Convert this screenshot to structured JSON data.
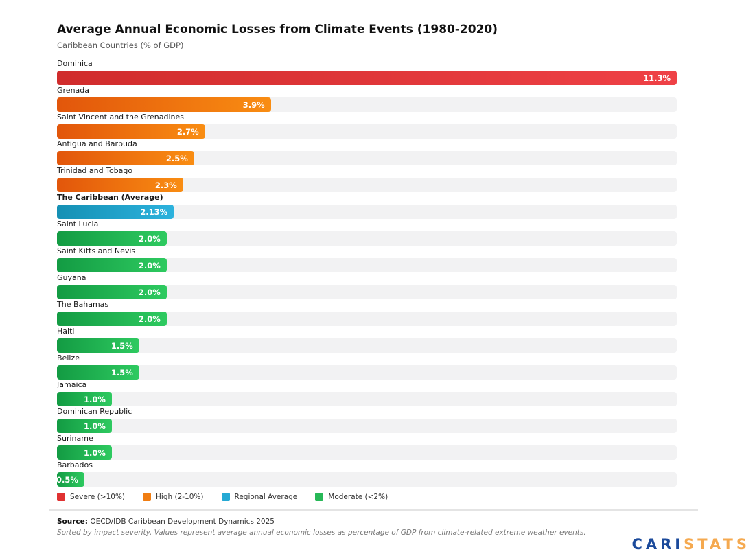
{
  "header": {
    "title": "Average Annual Economic Losses from Climate Events (1980-2020)",
    "subtitle": "Caribbean Countries (% of GDP)"
  },
  "chart_data": {
    "type": "bar",
    "orientation": "horizontal",
    "title": "Average Annual Economic Losses from Climate Events (1980-2020)",
    "subtitle": "Caribbean Countries (% of GDP)",
    "xlabel": "",
    "ylabel": "",
    "xlim": [
      0,
      11.3
    ],
    "grid": false,
    "legend_position": "bottom",
    "categories": [
      "Dominica",
      "Grenada",
      "Saint Vincent and the Grenadines",
      "Antigua and Barbuda",
      "Trinidad and Tobago",
      "The Caribbean (Average)",
      "Saint Lucia",
      "Saint Kitts and Nevis",
      "Guyana",
      "The Bahamas",
      "Haiti",
      "Belize",
      "Jamaica",
      "Dominican Republic",
      "Suriname",
      "Barbados"
    ],
    "values": [
      11.3,
      3.9,
      2.7,
      2.5,
      2.3,
      2.13,
      2.0,
      2.0,
      2.0,
      2.0,
      1.5,
      1.5,
      1.0,
      1.0,
      1.0,
      0.5
    ],
    "bars": [
      {
        "label": "Dominica",
        "value": 11.3,
        "display": "11.3%",
        "severity": "severe",
        "emphasis": false
      },
      {
        "label": "Grenada",
        "value": 3.9,
        "display": "3.9%",
        "severity": "high",
        "emphasis": false
      },
      {
        "label": "Saint Vincent and the Grenadines",
        "value": 2.7,
        "display": "2.7%",
        "severity": "high",
        "emphasis": false
      },
      {
        "label": "Antigua and Barbuda",
        "value": 2.5,
        "display": "2.5%",
        "severity": "high",
        "emphasis": false
      },
      {
        "label": "Trinidad and Tobago",
        "value": 2.3,
        "display": "2.3%",
        "severity": "high",
        "emphasis": false
      },
      {
        "label": "The Caribbean (Average)",
        "value": 2.13,
        "display": "2.13%",
        "severity": "regional",
        "emphasis": true
      },
      {
        "label": "Saint Lucia",
        "value": 2.0,
        "display": "2.0%",
        "severity": "moderate",
        "emphasis": false
      },
      {
        "label": "Saint Kitts and Nevis",
        "value": 2.0,
        "display": "2.0%",
        "severity": "moderate",
        "emphasis": false
      },
      {
        "label": "Guyana",
        "value": 2.0,
        "display": "2.0%",
        "severity": "moderate",
        "emphasis": false
      },
      {
        "label": "The Bahamas",
        "value": 2.0,
        "display": "2.0%",
        "severity": "moderate",
        "emphasis": false
      },
      {
        "label": "Haiti",
        "value": 1.5,
        "display": "1.5%",
        "severity": "moderate",
        "emphasis": false
      },
      {
        "label": "Belize",
        "value": 1.5,
        "display": "1.5%",
        "severity": "moderate",
        "emphasis": false
      },
      {
        "label": "Jamaica",
        "value": 1.0,
        "display": "1.0%",
        "severity": "moderate",
        "emphasis": false
      },
      {
        "label": "Dominican Republic",
        "value": 1.0,
        "display": "1.0%",
        "severity": "moderate",
        "emphasis": false
      },
      {
        "label": "Suriname",
        "value": 1.0,
        "display": "1.0%",
        "severity": "moderate",
        "emphasis": false
      },
      {
        "label": "Barbados",
        "value": 0.5,
        "display": "0.5%",
        "severity": "moderate",
        "emphasis": false
      }
    ],
    "severity_colors": {
      "severe": {
        "from": "#d02c2c",
        "to": "#ef4146"
      },
      "high": {
        "from": "#e2560b",
        "to": "#f98d12"
      },
      "regional": {
        "from": "#1590b4",
        "to": "#2cb2dd"
      },
      "moderate": {
        "from": "#139b43",
        "to": "#2eca60"
      }
    },
    "track_color": "#f2f2f3"
  },
  "legend": {
    "items": [
      {
        "label": "Severe (>10%)",
        "color": "#e03131"
      },
      {
        "label": "High (2-10%)",
        "color": "#f07d12"
      },
      {
        "label": "Regional Average",
        "color": "#25a9d4"
      },
      {
        "label": "Moderate (<2%)",
        "color": "#27b857"
      }
    ]
  },
  "footer": {
    "source_label": "Source:",
    "source_text": " OECD/IDB Caribbean Development Dynamics 2025",
    "note": "Sorted by impact severity. Values represent average annual economic losses as percentage of GDP from climate-related extreme weather events."
  },
  "branding": {
    "part1": "CARI",
    "part2": "STATS"
  }
}
